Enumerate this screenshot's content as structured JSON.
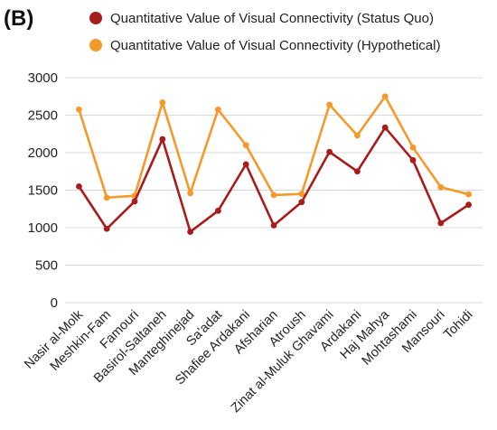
{
  "panel_label": "(B)",
  "chart_data": {
    "type": "line",
    "title": "",
    "xlabel": "",
    "ylabel": "",
    "ylim": [
      0,
      3000
    ],
    "yticks": [
      "0",
      "500",
      "1000",
      "1500",
      "2000",
      "2500",
      "3000"
    ],
    "grid": true,
    "legend_position": "top",
    "categories": [
      "Nasir al-Molk",
      "Meshkin-Fam",
      "Famouri",
      "Basirol-Saltaneh",
      "Manteghinejad",
      "Sa'adat",
      "Shafiee Ardakani",
      "Afsharian",
      "Atroush",
      "Zinat al-Muluk Ghavami",
      "Ardakani",
      "Haj Mahya",
      "Mohtashami",
      "Mansouri",
      "Tohidi"
    ],
    "series": [
      {
        "name": "Quantitative Value of Visual Connectivity (Status Quo)",
        "color": "#a81c1c",
        "values": [
          1550,
          985,
          1350,
          2180,
          945,
          1225,
          1845,
          1030,
          1340,
          2010,
          1750,
          2335,
          1900,
          1060,
          1305
        ]
      },
      {
        "name": "Quantitative Value of Visual Connectivity (Hypothetical)",
        "color": "#f39a2b",
        "values": [
          2575,
          1400,
          1425,
          2670,
          1460,
          2575,
          2100,
          1435,
          1450,
          2640,
          2230,
          2750,
          2070,
          1540,
          1445
        ]
      }
    ]
  }
}
